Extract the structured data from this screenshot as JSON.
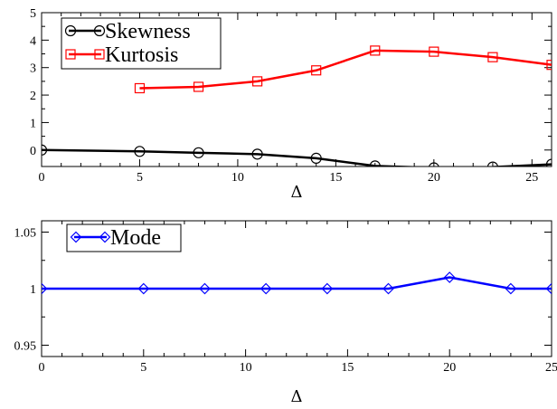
{
  "chart_data": [
    {
      "type": "line",
      "title": "",
      "xlabel": "Δ",
      "ylabel": "",
      "xlim": [
        0,
        26
      ],
      "ylim": [
        -0.6,
        5
      ],
      "xticks": [
        0,
        5,
        10,
        15,
        20,
        25
      ],
      "yticks": [
        0,
        1,
        2,
        3,
        4,
        5
      ],
      "ytick_labels": [
        "0",
        "1",
        "2",
        "3",
        "4",
        "5"
      ],
      "grid": false,
      "legend_position": "top-left",
      "series": [
        {
          "name": "Skewness",
          "color": "#000000",
          "marker": "circle",
          "x": [
            0,
            5,
            8,
            11,
            14,
            17,
            20,
            23,
            26
          ],
          "y": [
            0.0,
            -0.05,
            -0.1,
            -0.15,
            -0.3,
            -0.58,
            -0.65,
            -0.62,
            -0.52
          ]
        },
        {
          "name": "Kurtosis",
          "color": "#ff0000",
          "marker": "square",
          "x": [
            5,
            8,
            11,
            14,
            17,
            20,
            23,
            26
          ],
          "y": [
            2.25,
            2.3,
            2.5,
            2.9,
            3.62,
            3.58,
            3.38,
            3.1
          ]
        }
      ]
    },
    {
      "type": "line",
      "title": "",
      "xlabel": "Δ",
      "ylabel": "",
      "xlim": [
        0,
        25
      ],
      "ylim": [
        0.94,
        1.06
      ],
      "xticks": [
        0,
        5,
        10,
        15,
        20,
        25
      ],
      "yticks": [
        0.95,
        1.0,
        1.05
      ],
      "ytick_labels": [
        "0.95",
        "1",
        "1.05"
      ],
      "grid": false,
      "legend_position": "top-left",
      "series": [
        {
          "name": "Mode",
          "color": "#0000ff",
          "marker": "diamond",
          "x": [
            0,
            5,
            8,
            11,
            14,
            17,
            20,
            23,
            25
          ],
          "y": [
            1.0,
            1.0,
            1.0,
            1.0,
            1.0,
            1.0,
            1.01,
            1.0,
            1.0
          ]
        }
      ]
    }
  ]
}
